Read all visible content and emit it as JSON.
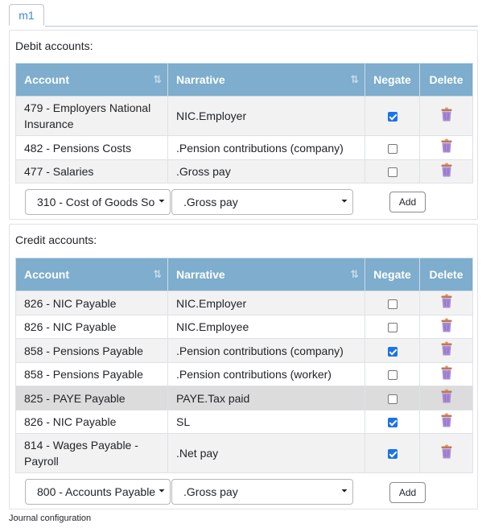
{
  "tab": {
    "label": "m1"
  },
  "columns": {
    "account": "Account",
    "narrative": "Narrative",
    "negate": "Negate",
    "delete": "Delete"
  },
  "debit": {
    "title": "Debit accounts:",
    "rows": [
      {
        "account": "479 - Employers National Insurance",
        "narrative": "NIC.Employer",
        "negate": true
      },
      {
        "account": "482 - Pensions Costs",
        "narrative": ".Pension contributions (company)",
        "negate": false
      },
      {
        "account": "477 - Salaries",
        "narrative": ".Gross pay",
        "negate": false
      }
    ],
    "new_account": "310 - Cost of Goods So",
    "new_narrative": ".Gross pay",
    "add_label": "Add"
  },
  "credit": {
    "title": "Credit accounts:",
    "rows": [
      {
        "account": "826 - NIC Payable",
        "narrative": "NIC.Employer",
        "negate": false
      },
      {
        "account": "826 - NIC Payable",
        "narrative": "NIC.Employee",
        "negate": false
      },
      {
        "account": "858 - Pensions Payable",
        "narrative": ".Pension contributions (company)",
        "negate": true
      },
      {
        "account": "858 - Pensions Payable",
        "narrative": ".Pension contributions (worker)",
        "negate": false
      },
      {
        "account": "825 - PAYE Payable",
        "narrative": "PAYE.Tax paid",
        "negate": false
      },
      {
        "account": "826 - NIC Payable",
        "narrative": "SL",
        "negate": true
      },
      {
        "account": "814 - Wages Payable - Payroll",
        "narrative": ".Net pay",
        "negate": true
      }
    ],
    "new_account": "800 - Accounts Payable",
    "new_narrative": ".Gross pay",
    "add_label": "Add"
  },
  "footer": "Journal configuration",
  "colors": {
    "header": "#7eadcd",
    "tab_text": "#3d8bd0",
    "checkbox": "#1a73e8",
    "trash": "#a98bd6"
  },
  "icons": {
    "sort": "sort-icon",
    "delete": "trash-icon",
    "select": "chevron-down-icon"
  }
}
